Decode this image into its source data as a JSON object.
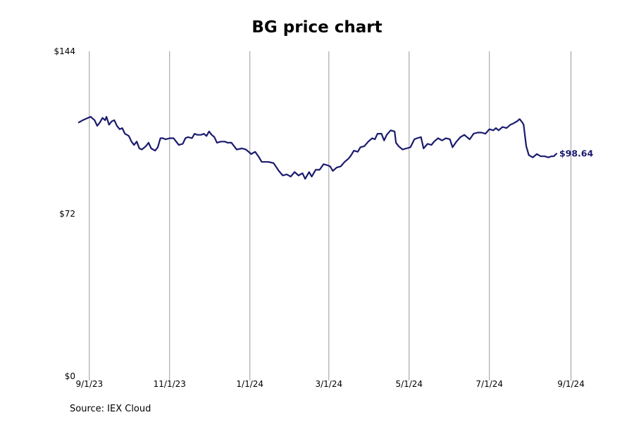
{
  "colors": {
    "line": "#1a1a6e",
    "grid": "#999999",
    "background": "#ffffff"
  },
  "chart_data": {
    "type": "line",
    "title": "BG price chart",
    "xlabel": "",
    "ylabel": "",
    "source": "Source: IEX Cloud",
    "grid": "vertical",
    "ylim": [
      0,
      144
    ],
    "xlim": [
      "2023-08-23",
      "2024-09-05"
    ],
    "y_ticks": [
      {
        "value": 0,
        "label": "$0"
      },
      {
        "value": 72,
        "label": "$72"
      },
      {
        "value": 144,
        "label": "$144"
      }
    ],
    "x_ticks": [
      {
        "date": "2023-09-01",
        "label": "9/1/23"
      },
      {
        "date": "2023-11-01",
        "label": "11/1/23"
      },
      {
        "date": "2024-01-01",
        "label": "1/1/24"
      },
      {
        "date": "2024-03-01",
        "label": "3/1/24"
      },
      {
        "date": "2024-05-01",
        "label": "5/1/24"
      },
      {
        "date": "2024-07-01",
        "label": "7/1/24"
      },
      {
        "date": "2024-09-01",
        "label": "9/1/24"
      }
    ],
    "last_value_label": "$98.64",
    "series": [
      {
        "values": [
          [
            "2023-08-24",
            112.5
          ],
          [
            "2023-08-27",
            113.5
          ],
          [
            "2023-08-31",
            114.5
          ],
          [
            "2023-09-02",
            115.0
          ],
          [
            "2023-09-05",
            113.5
          ],
          [
            "2023-09-07",
            111.0
          ],
          [
            "2023-09-09",
            112.5
          ],
          [
            "2023-09-11",
            114.5
          ],
          [
            "2023-09-13",
            113.5
          ],
          [
            "2023-09-14",
            115.0
          ],
          [
            "2023-09-16",
            111.5
          ],
          [
            "2023-09-18",
            113.0
          ],
          [
            "2023-09-20",
            113.5
          ],
          [
            "2023-09-22",
            111.0
          ],
          [
            "2023-09-24",
            109.5
          ],
          [
            "2023-09-26",
            110.0
          ],
          [
            "2023-09-28",
            107.5
          ],
          [
            "2023-10-01",
            106.5
          ],
          [
            "2023-10-03",
            104.0
          ],
          [
            "2023-10-05",
            102.5
          ],
          [
            "2023-10-07",
            104.0
          ],
          [
            "2023-10-09",
            101.0
          ],
          [
            "2023-10-11",
            100.5
          ],
          [
            "2023-10-14",
            102.0
          ],
          [
            "2023-10-16",
            103.5
          ],
          [
            "2023-10-18",
            101.0
          ],
          [
            "2023-10-21",
            100.0
          ],
          [
            "2023-10-23",
            101.5
          ],
          [
            "2023-10-25",
            105.5
          ],
          [
            "2023-10-27",
            105.5
          ],
          [
            "2023-10-29",
            105.0
          ],
          [
            "2023-11-01",
            105.5
          ],
          [
            "2023-11-04",
            105.5
          ],
          [
            "2023-11-06",
            104.0
          ],
          [
            "2023-11-08",
            102.5
          ],
          [
            "2023-11-11",
            103.0
          ],
          [
            "2023-11-13",
            105.5
          ],
          [
            "2023-11-15",
            106.0
          ],
          [
            "2023-11-18",
            105.5
          ],
          [
            "2023-11-20",
            107.5
          ],
          [
            "2023-11-22",
            107.0
          ],
          [
            "2023-11-25",
            107.0
          ],
          [
            "2023-11-27",
            107.5
          ],
          [
            "2023-11-29",
            106.5
          ],
          [
            "2023-12-01",
            108.5
          ],
          [
            "2023-12-03",
            107.0
          ],
          [
            "2023-12-05",
            106.0
          ],
          [
            "2023-12-07",
            103.5
          ],
          [
            "2023-12-10",
            104.0
          ],
          [
            "2023-12-13",
            104.0
          ],
          [
            "2023-12-15",
            103.5
          ],
          [
            "2023-12-18",
            103.5
          ],
          [
            "2023-12-20",
            102.0
          ],
          [
            "2023-12-22",
            100.5
          ],
          [
            "2023-12-26",
            101.0
          ],
          [
            "2023-12-29",
            100.5
          ],
          [
            "2024-01-02",
            98.5
          ],
          [
            "2024-01-05",
            99.5
          ],
          [
            "2024-01-08",
            97.0
          ],
          [
            "2024-01-10",
            95.0
          ],
          [
            "2024-01-15",
            95.0
          ],
          [
            "2024-01-19",
            94.5
          ],
          [
            "2024-01-23",
            91.0
          ],
          [
            "2024-01-26",
            89.0
          ],
          [
            "2024-01-29",
            89.5
          ],
          [
            "2024-02-01",
            88.5
          ],
          [
            "2024-02-04",
            90.5
          ],
          [
            "2024-02-07",
            89.0
          ],
          [
            "2024-02-10",
            90.0
          ],
          [
            "2024-02-12",
            87.5
          ],
          [
            "2024-02-15",
            90.5
          ],
          [
            "2024-02-17",
            88.5
          ],
          [
            "2024-02-20",
            91.5
          ],
          [
            "2024-02-23",
            91.5
          ],
          [
            "2024-02-26",
            94.0
          ],
          [
            "2024-02-29",
            93.5
          ],
          [
            "2024-03-02",
            93.0
          ],
          [
            "2024-03-04",
            91.0
          ],
          [
            "2024-03-07",
            92.5
          ],
          [
            "2024-03-10",
            93.0
          ],
          [
            "2024-03-13",
            95.0
          ],
          [
            "2024-03-16",
            96.5
          ],
          [
            "2024-03-18",
            98.0
          ],
          [
            "2024-03-20",
            100.0
          ],
          [
            "2024-03-23",
            99.5
          ],
          [
            "2024-03-25",
            101.5
          ],
          [
            "2024-03-28",
            102.0
          ],
          [
            "2024-03-31",
            104.0
          ],
          [
            "2024-04-03",
            105.5
          ],
          [
            "2024-04-05",
            105.0
          ],
          [
            "2024-04-07",
            107.5
          ],
          [
            "2024-04-10",
            107.5
          ],
          [
            "2024-04-12",
            104.5
          ],
          [
            "2024-04-14",
            107.0
          ],
          [
            "2024-04-17",
            109.0
          ],
          [
            "2024-04-20",
            108.5
          ],
          [
            "2024-04-21",
            103.5
          ],
          [
            "2024-04-23",
            102.0
          ],
          [
            "2024-04-26",
            100.5
          ],
          [
            "2024-04-29",
            101.0
          ],
          [
            "2024-05-02",
            101.5
          ],
          [
            "2024-05-05",
            105.0
          ],
          [
            "2024-05-07",
            105.5
          ],
          [
            "2024-05-10",
            106.0
          ],
          [
            "2024-05-12",
            101.0
          ],
          [
            "2024-05-15",
            103.0
          ],
          [
            "2024-05-18",
            102.5
          ],
          [
            "2024-05-20",
            104.0
          ],
          [
            "2024-05-23",
            105.5
          ],
          [
            "2024-05-26",
            104.5
          ],
          [
            "2024-05-29",
            105.5
          ],
          [
            "2024-06-01",
            105.0
          ],
          [
            "2024-06-03",
            101.5
          ],
          [
            "2024-06-06",
            104.0
          ],
          [
            "2024-06-09",
            106.0
          ],
          [
            "2024-06-12",
            107.0
          ],
          [
            "2024-06-14",
            106.0
          ],
          [
            "2024-06-16",
            105.0
          ],
          [
            "2024-06-19",
            107.5
          ],
          [
            "2024-06-22",
            108.0
          ],
          [
            "2024-06-25",
            108.0
          ],
          [
            "2024-06-28",
            107.5
          ],
          [
            "2024-07-01",
            109.5
          ],
          [
            "2024-07-04",
            109.0
          ],
          [
            "2024-07-06",
            110.0
          ],
          [
            "2024-07-08",
            109.0
          ],
          [
            "2024-07-11",
            110.5
          ],
          [
            "2024-07-14",
            110.0
          ],
          [
            "2024-07-17",
            111.5
          ],
          [
            "2024-07-19",
            112.0
          ],
          [
            "2024-07-22",
            113.0
          ],
          [
            "2024-07-24",
            114.0
          ],
          [
            "2024-07-26",
            112.5
          ],
          [
            "2024-07-27",
            111.5
          ],
          [
            "2024-07-29",
            102.0
          ],
          [
            "2024-07-31",
            98.0
          ],
          [
            "2024-08-03",
            97.0
          ],
          [
            "2024-08-06",
            98.5
          ],
          [
            "2024-08-09",
            97.5
          ],
          [
            "2024-08-12",
            97.5
          ],
          [
            "2024-08-15",
            97.0
          ],
          [
            "2024-08-17",
            97.5
          ],
          [
            "2024-08-19",
            97.5
          ],
          [
            "2024-08-21",
            98.64
          ]
        ]
      }
    ]
  }
}
